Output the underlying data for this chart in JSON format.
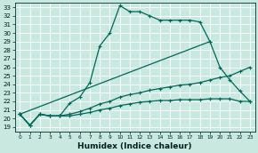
{
  "xlabel": "Humidex (Indice chaleur)",
  "bg_color": "#c8e8e0",
  "grid_color": "#ffffff",
  "line_color": "#006858",
  "xlim": [
    -0.5,
    23.5
  ],
  "ylim": [
    18.5,
    33.5
  ],
  "xticks": [
    0,
    1,
    2,
    3,
    4,
    5,
    6,
    7,
    8,
    9,
    10,
    11,
    12,
    13,
    14,
    15,
    16,
    17,
    18,
    19,
    20,
    21,
    22,
    23
  ],
  "yticks": [
    19,
    20,
    21,
    22,
    23,
    24,
    25,
    26,
    27,
    28,
    29,
    30,
    31,
    32,
    33
  ],
  "lines": [
    {
      "x": [
        0,
        1,
        2,
        3,
        4,
        5,
        6,
        7,
        8,
        9,
        10,
        11,
        12,
        13,
        14,
        15,
        16,
        17,
        18,
        19,
        20,
        21,
        22,
        23
      ],
      "y": [
        20.5,
        19.2,
        20.5,
        20.3,
        20.3,
        20.3,
        20.5,
        20.7,
        21.0,
        21.2,
        21.5,
        21.7,
        21.9,
        22.0,
        22.1,
        22.1,
        22.2,
        22.2,
        22.2,
        22.3,
        22.3,
        22.3,
        22.0,
        22.0
      ]
    },
    {
      "x": [
        0,
        1,
        2,
        3,
        4,
        5,
        6,
        7,
        8,
        9,
        10,
        11,
        12,
        13,
        14,
        15,
        16,
        17,
        18,
        19,
        20,
        21,
        22,
        23
      ],
      "y": [
        20.5,
        19.2,
        20.5,
        20.3,
        20.3,
        20.5,
        20.8,
        21.2,
        21.7,
        22.0,
        22.5,
        22.8,
        23.0,
        23.3,
        23.5,
        23.7,
        23.9,
        24.0,
        24.2,
        24.5,
        24.8,
        25.0,
        25.5,
        26.0
      ]
    },
    {
      "x": [
        0,
        1,
        2,
        3,
        4,
        5,
        6,
        7,
        8,
        9,
        10,
        11,
        12,
        13,
        14,
        15,
        16,
        17,
        18,
        19,
        20,
        21,
        22,
        23
      ],
      "y": [
        20.5,
        19.2,
        20.5,
        20.3,
        20.3,
        21.8,
        22.5,
        24.2,
        28.5,
        30.0,
        33.2,
        32.5,
        32.5,
        32.0,
        31.5,
        31.5,
        31.5,
        31.5,
        31.3,
        29.0,
        null,
        null,
        null,
        null
      ]
    },
    {
      "x": [
        0,
        19,
        20,
        21,
        22,
        23
      ],
      "y": [
        20.5,
        29.0,
        26.0,
        24.5,
        23.2,
        22.0
      ]
    }
  ]
}
